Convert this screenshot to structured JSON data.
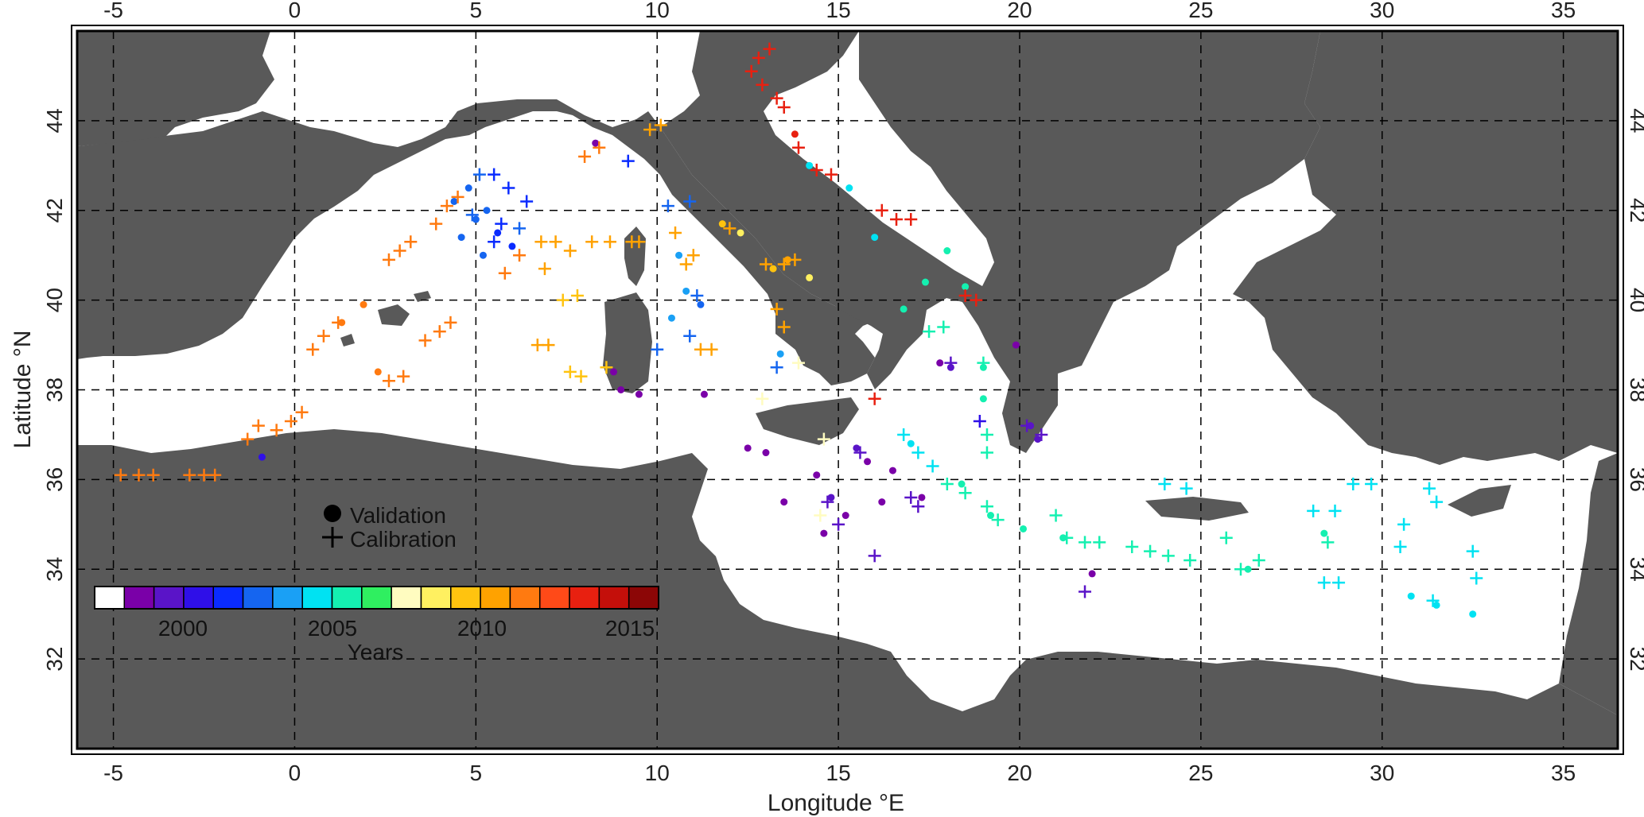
{
  "map": {
    "region": "Mediterranean Sea",
    "lon_range": [
      -6,
      36.5
    ],
    "lat_range": [
      30,
      46
    ],
    "land_color": "#595959",
    "sea_color": "#ffffff",
    "grid": "dashed",
    "x_ticks": [
      "-5",
      "0",
      "5",
      "10",
      "15",
      "20",
      "25",
      "30",
      "35"
    ],
    "y_ticks": [
      "32",
      "34",
      "36",
      "38",
      "40",
      "42",
      "44"
    ],
    "x_tick_values": [
      -5,
      0,
      5,
      10,
      15,
      20,
      25,
      30,
      35
    ],
    "y_tick_values": [
      32,
      34,
      36,
      38,
      40,
      42,
      44
    ],
    "xlabel": "Longitude °E",
    "ylabel": "Latitude °N"
  },
  "legend": {
    "validation_label": "Validation",
    "calibration_label": "Calibration"
  },
  "colorbar": {
    "title": "Years",
    "tick_labels": [
      "2000",
      "2005",
      "2010",
      "2015"
    ],
    "colors": [
      "#ffffff",
      "#7a00a8",
      "#5a14c8",
      "#2f0fe8",
      "#0a2bff",
      "#1565f0",
      "#1aa0f5",
      "#00e2f2",
      "#14f0b0",
      "#2fef60",
      "#fffcc0",
      "#fff060",
      "#ffc30f",
      "#ffa200",
      "#ff7a10",
      "#ff4a18",
      "#e82010",
      "#c40f0a",
      "#8c0606"
    ]
  },
  "chart_data": {
    "type": "scatter",
    "xlabel": "Longitude °E",
    "ylabel": "Latitude °N",
    "xlim": [
      -6,
      36.5
    ],
    "ylim": [
      30,
      46
    ],
    "series": [
      {
        "name": "Validation",
        "marker": "dot",
        "points": [
          [
            4.4,
            42.2,
            "#1565f0"
          ],
          [
            4.8,
            42.5,
            "#1565f0"
          ],
          [
            5.0,
            41.8,
            "#1565f0"
          ],
          [
            5.3,
            42.0,
            "#1565f0"
          ],
          [
            4.6,
            41.4,
            "#1565f0"
          ],
          [
            5.6,
            41.5,
            "#0a2bff"
          ],
          [
            6.0,
            41.2,
            "#0a2bff"
          ],
          [
            5.2,
            41.0,
            "#1565f0"
          ],
          [
            8.3,
            43.5,
            "#7a00a8"
          ],
          [
            13.6,
            40.9,
            "#ffa200"
          ],
          [
            13.2,
            40.7,
            "#ffc30f"
          ],
          [
            14.2,
            40.5,
            "#fff060"
          ],
          [
            11.8,
            41.7,
            "#ffc30f"
          ],
          [
            12.3,
            41.5,
            "#fff060"
          ],
          [
            10.4,
            39.6,
            "#1aa0f5"
          ],
          [
            10.8,
            40.2,
            "#1aa0f5"
          ],
          [
            11.2,
            39.9,
            "#1565f0"
          ],
          [
            10.6,
            41.0,
            "#1aa0f5"
          ],
          [
            13.4,
            38.8,
            "#1aa0f5"
          ],
          [
            1.3,
            39.5,
            "#ff7a10"
          ],
          [
            2.3,
            38.4,
            "#ff7a10"
          ],
          [
            -0.9,
            36.5,
            "#2f0fe8"
          ],
          [
            1.9,
            39.9,
            "#ff7a10"
          ],
          [
            9.0,
            38.0,
            "#7a00a8"
          ],
          [
            8.8,
            38.4,
            "#7a00a8"
          ],
          [
            9.5,
            37.9,
            "#7a00a8"
          ],
          [
            11.3,
            37.9,
            "#7a00a8"
          ],
          [
            12.5,
            36.7,
            "#7a00a8"
          ],
          [
            13.0,
            36.6,
            "#7a00a8"
          ],
          [
            14.4,
            36.1,
            "#7a00a8"
          ],
          [
            14.8,
            35.6,
            "#5a14c8"
          ],
          [
            15.2,
            35.2,
            "#7a00a8"
          ],
          [
            15.5,
            36.7,
            "#5a14c8"
          ],
          [
            15.8,
            36.4,
            "#7a00a8"
          ],
          [
            13.5,
            35.5,
            "#7a00a8"
          ],
          [
            14.6,
            34.8,
            "#7a00a8"
          ],
          [
            16.2,
            35.5,
            "#7a00a8"
          ],
          [
            16.5,
            36.2,
            "#7a00a8"
          ],
          [
            17.3,
            35.6,
            "#7a00a8"
          ],
          [
            17.8,
            38.6,
            "#7a00a8"
          ],
          [
            18.1,
            38.5,
            "#5a14c8"
          ],
          [
            19.9,
            39.0,
            "#7a00a8"
          ],
          [
            22.0,
            33.9,
            "#7a00a8"
          ],
          [
            20.3,
            37.2,
            "#5a14c8"
          ],
          [
            20.5,
            36.9,
            "#5a14c8"
          ],
          [
            17.0,
            36.8,
            "#00e2f2"
          ],
          [
            18.4,
            35.9,
            "#14f0b0"
          ],
          [
            19.2,
            35.2,
            "#14f0b0"
          ],
          [
            20.1,
            34.9,
            "#14f0b0"
          ],
          [
            21.2,
            34.7,
            "#14f0b0"
          ],
          [
            26.3,
            34.0,
            "#14f0b0"
          ],
          [
            28.4,
            34.8,
            "#14f0b0"
          ],
          [
            30.8,
            33.4,
            "#00e2f2"
          ],
          [
            31.5,
            33.2,
            "#00e2f2"
          ],
          [
            32.5,
            33.0,
            "#00e2f2"
          ],
          [
            19.0,
            37.8,
            "#14f0b0"
          ],
          [
            19.0,
            38.5,
            "#14f0b0"
          ],
          [
            18.5,
            40.3,
            "#14f0b0"
          ],
          [
            18.0,
            41.1,
            "#14f0b0"
          ],
          [
            17.4,
            40.4,
            "#14f0b0"
          ],
          [
            16.8,
            39.8,
            "#14f0b0"
          ],
          [
            13.8,
            43.7,
            "#e82010"
          ],
          [
            14.2,
            43.0,
            "#00e2f2"
          ],
          [
            15.3,
            42.5,
            "#00e2f2"
          ],
          [
            16.0,
            41.4,
            "#00e2f2"
          ]
        ]
      },
      {
        "name": "Calibration",
        "marker": "plus",
        "points": [
          [
            -4.8,
            36.1,
            "#ff7a10"
          ],
          [
            -4.3,
            36.1,
            "#ff7a10"
          ],
          [
            -3.9,
            36.1,
            "#ff7a10"
          ],
          [
            -2.9,
            36.1,
            "#ff7a10"
          ],
          [
            -2.5,
            36.1,
            "#ff7a10"
          ],
          [
            -2.2,
            36.1,
            "#ff7a10"
          ],
          [
            -1.3,
            36.9,
            "#ff7a10"
          ],
          [
            -1.0,
            37.2,
            "#ff7a10"
          ],
          [
            -0.5,
            37.1,
            "#ff7a10"
          ],
          [
            -0.1,
            37.3,
            "#ff7a10"
          ],
          [
            0.2,
            37.5,
            "#ff7a10"
          ],
          [
            0.5,
            38.9,
            "#ff7a10"
          ],
          [
            0.8,
            39.2,
            "#ff7a10"
          ],
          [
            1.2,
            39.5,
            "#ff7a10"
          ],
          [
            2.6,
            38.2,
            "#ff7a10"
          ],
          [
            3.0,
            38.3,
            "#ff7a10"
          ],
          [
            3.6,
            39.1,
            "#ff7a10"
          ],
          [
            4.0,
            39.3,
            "#ff7a10"
          ],
          [
            4.3,
            39.5,
            "#ff7a10"
          ],
          [
            2.6,
            40.9,
            "#ff7a10"
          ],
          [
            2.9,
            41.1,
            "#ff7a10"
          ],
          [
            3.2,
            41.3,
            "#ff7a10"
          ],
          [
            3.9,
            41.7,
            "#ff7a10"
          ],
          [
            4.2,
            42.1,
            "#ff7a10"
          ],
          [
            4.5,
            42.3,
            "#ff7a10"
          ],
          [
            5.1,
            42.8,
            "#1565f0"
          ],
          [
            5.5,
            42.8,
            "#0a2bff"
          ],
          [
            5.9,
            42.5,
            "#0a2bff"
          ],
          [
            6.4,
            42.2,
            "#0a2bff"
          ],
          [
            5.7,
            41.7,
            "#0a2bff"
          ],
          [
            4.9,
            41.9,
            "#1565f0"
          ],
          [
            5.5,
            41.3,
            "#0a2bff"
          ],
          [
            6.2,
            41.6,
            "#1565f0"
          ],
          [
            5.8,
            40.6,
            "#ff7a10"
          ],
          [
            6.2,
            41.0,
            "#ff7a10"
          ],
          [
            6.8,
            41.3,
            "#ffa200"
          ],
          [
            7.2,
            41.3,
            "#ffa200"
          ],
          [
            7.6,
            41.1,
            "#ffa200"
          ],
          [
            6.9,
            40.7,
            "#ffa200"
          ],
          [
            7.4,
            40.0,
            "#ffc30f"
          ],
          [
            7.8,
            40.1,
            "#ffc30f"
          ],
          [
            7.0,
            39.0,
            "#ffa200"
          ],
          [
            6.7,
            39.0,
            "#ffa200"
          ],
          [
            7.6,
            38.4,
            "#ffc30f"
          ],
          [
            7.9,
            38.3,
            "#ffc30f"
          ],
          [
            8.6,
            38.5,
            "#ffc30f"
          ],
          [
            8.2,
            41.3,
            "#ffa200"
          ],
          [
            8.7,
            41.3,
            "#ffa200"
          ],
          [
            9.3,
            41.3,
            "#ffa200"
          ],
          [
            8.0,
            43.2,
            "#ff7a10"
          ],
          [
            8.4,
            43.4,
            "#ff7a10"
          ],
          [
            9.2,
            43.1,
            "#0a2bff"
          ],
          [
            9.8,
            43.8,
            "#ffa200"
          ],
          [
            10.1,
            43.9,
            "#ffa200"
          ],
          [
            10.3,
            42.1,
            "#1565f0"
          ],
          [
            10.9,
            42.2,
            "#1565f0"
          ],
          [
            10.5,
            41.5,
            "#ffa200"
          ],
          [
            11.0,
            41.0,
            "#ffa200"
          ],
          [
            10.8,
            40.8,
            "#ffa200"
          ],
          [
            11.1,
            40.1,
            "#1565f0"
          ],
          [
            10.9,
            39.2,
            "#1565f0"
          ],
          [
            11.5,
            38.9,
            "#ffa200"
          ],
          [
            11.2,
            38.9,
            "#ffa200"
          ],
          [
            12.0,
            41.6,
            "#ffa200"
          ],
          [
            13.0,
            40.8,
            "#ffa200"
          ],
          [
            13.5,
            40.8,
            "#ffa200"
          ],
          [
            13.8,
            40.9,
            "#ffa200"
          ],
          [
            13.3,
            39.8,
            "#ffa200"
          ],
          [
            13.5,
            39.4,
            "#ffa200"
          ],
          [
            13.3,
            38.5,
            "#1565f0"
          ],
          [
            10.0,
            38.9,
            "#1565f0"
          ],
          [
            9.5,
            41.3,
            "#ffa200"
          ],
          [
            13.1,
            45.6,
            "#e82010"
          ],
          [
            12.8,
            45.4,
            "#e82010"
          ],
          [
            12.6,
            45.1,
            "#e82010"
          ],
          [
            12.9,
            44.8,
            "#e82010"
          ],
          [
            13.3,
            44.5,
            "#e82010"
          ],
          [
            13.5,
            44.3,
            "#e82010"
          ],
          [
            13.9,
            43.4,
            "#e82010"
          ],
          [
            14.4,
            42.9,
            "#e82010"
          ],
          [
            14.8,
            42.8,
            "#e82010"
          ],
          [
            16.2,
            42.0,
            "#e82010"
          ],
          [
            16.6,
            41.8,
            "#e82010"
          ],
          [
            17.0,
            41.8,
            "#e82010"
          ],
          [
            18.5,
            40.1,
            "#e82010"
          ],
          [
            18.8,
            40.0,
            "#e82010"
          ],
          [
            16.0,
            37.8,
            "#e82010"
          ],
          [
            17.9,
            39.4,
            "#14f0b0"
          ],
          [
            17.5,
            39.3,
            "#14f0b0"
          ],
          [
            19.0,
            38.6,
            "#14f0b0"
          ],
          [
            19.1,
            37.0,
            "#14f0b0"
          ],
          [
            19.1,
            36.6,
            "#14f0b0"
          ],
          [
            18.9,
            37.3,
            "#2f0fe8"
          ],
          [
            16.8,
            37.0,
            "#00e2f2"
          ],
          [
            17.2,
            36.6,
            "#00e2f2"
          ],
          [
            17.6,
            36.3,
            "#00e2f2"
          ],
          [
            18.0,
            35.9,
            "#14f0b0"
          ],
          [
            18.5,
            35.7,
            "#14f0b0"
          ],
          [
            19.1,
            35.4,
            "#14f0b0"
          ],
          [
            19.4,
            35.1,
            "#14f0b0"
          ],
          [
            21.0,
            35.2,
            "#14f0b0"
          ],
          [
            21.3,
            34.7,
            "#14f0b0"
          ],
          [
            21.8,
            34.6,
            "#14f0b0"
          ],
          [
            22.2,
            34.6,
            "#14f0b0"
          ],
          [
            23.1,
            34.5,
            "#14f0b0"
          ],
          [
            23.6,
            34.4,
            "#14f0b0"
          ],
          [
            24.1,
            34.3,
            "#14f0b0"
          ],
          [
            24.7,
            34.2,
            "#14f0b0"
          ],
          [
            25.7,
            34.7,
            "#14f0b0"
          ],
          [
            26.1,
            34.0,
            "#14f0b0"
          ],
          [
            26.6,
            34.2,
            "#14f0b0"
          ],
          [
            24.0,
            35.9,
            "#00e2f2"
          ],
          [
            24.6,
            35.8,
            "#00e2f2"
          ],
          [
            28.1,
            35.3,
            "#00e2f2"
          ],
          [
            28.7,
            35.3,
            "#00e2f2"
          ],
          [
            29.2,
            35.9,
            "#00e2f2"
          ],
          [
            29.7,
            35.9,
            "#00e2f2"
          ],
          [
            28.5,
            34.6,
            "#14f0b0"
          ],
          [
            28.4,
            33.7,
            "#00e2f2"
          ],
          [
            28.8,
            33.7,
            "#00e2f2"
          ],
          [
            30.6,
            35.0,
            "#00e2f2"
          ],
          [
            30.5,
            34.5,
            "#00e2f2"
          ],
          [
            31.3,
            35.8,
            "#00e2f2"
          ],
          [
            31.5,
            35.5,
            "#00e2f2"
          ],
          [
            31.4,
            33.3,
            "#00e2f2"
          ],
          [
            32.5,
            34.4,
            "#00e2f2"
          ],
          [
            32.6,
            33.8,
            "#00e2f2"
          ],
          [
            14.7,
            35.5,
            "#5a14c8"
          ],
          [
            15.0,
            35.0,
            "#5a14c8"
          ],
          [
            15.6,
            36.6,
            "#5a14c8"
          ],
          [
            16.0,
            34.3,
            "#5a14c8"
          ],
          [
            17.2,
            35.4,
            "#5a14c8"
          ],
          [
            17.0,
            35.6,
            "#5a14c8"
          ],
          [
            18.1,
            38.6,
            "#5a14c8"
          ],
          [
            20.2,
            37.2,
            "#5a14c8"
          ],
          [
            20.6,
            37.0,
            "#5a14c8"
          ],
          [
            21.8,
            33.5,
            "#5a14c8"
          ],
          [
            14.6,
            36.9,
            "#fffcc0"
          ],
          [
            14.5,
            35.2,
            "#fffcc0"
          ],
          [
            12.9,
            37.8,
            "#fffcc0"
          ],
          [
            13.9,
            38.6,
            "#fffcc0"
          ]
        ]
      }
    ]
  }
}
